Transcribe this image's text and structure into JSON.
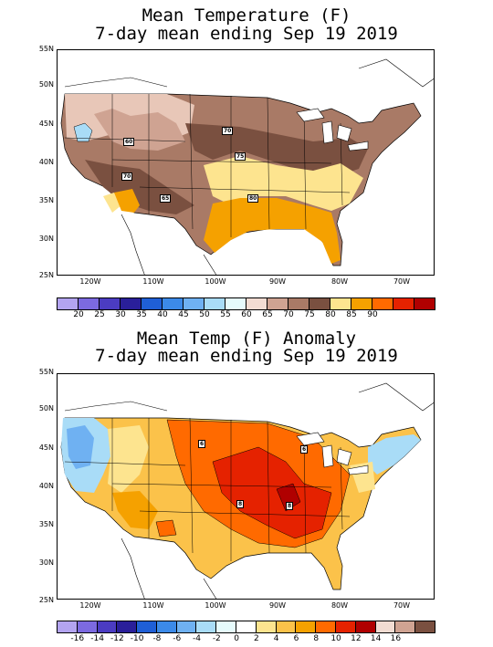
{
  "panel1": {
    "title_line1": "Mean Temperature (F)",
    "title_line2": "7-day mean ending Sep 19 2019",
    "contour_labels": [
      "60",
      "70",
      "75",
      "70",
      "65",
      "80"
    ],
    "colorbar": {
      "ticks": [
        "20",
        "25",
        "30",
        "35",
        "40",
        "45",
        "50",
        "55",
        "60",
        "65",
        "70",
        "75",
        "80",
        "85",
        "90"
      ],
      "colors": [
        "#b3a4f0",
        "#7c6ae0",
        "#4b3cc2",
        "#2a1f9a",
        "#1f5fd6",
        "#3c8ae8",
        "#6fb1f2",
        "#a9dcf7",
        "#e6fbfc",
        "#f2dcd2",
        "#cfa392",
        "#a97a66",
        "#7a5040",
        "#fde48f",
        "#f5a100",
        "#ff6a00",
        "#e52200",
        "#b00000"
      ]
    }
  },
  "panel2": {
    "title_line1": "Mean Temp (F) Anomaly",
    "title_line2": "7-day mean ending Sep 19 2019",
    "contour_labels": [
      "6",
      "6",
      "8",
      "8"
    ],
    "colorbar": {
      "ticks": [
        "-16",
        "-14",
        "-12",
        "-10",
        "-8",
        "-6",
        "-4",
        "-2",
        "0",
        "2",
        "4",
        "6",
        "8",
        "10",
        "12",
        "14",
        "16"
      ],
      "colors": [
        "#b3a4f0",
        "#7c6ae0",
        "#4b3cc2",
        "#2a1f9a",
        "#1f5fd6",
        "#3c8ae8",
        "#6fb1f2",
        "#a9dcf7",
        "#e6fbfc",
        "#ffffff",
        "#fde48f",
        "#fbc24a",
        "#f5a100",
        "#ff6a00",
        "#e52200",
        "#b00000",
        "#f2dcd2",
        "#cfa392",
        "#7a5040"
      ]
    }
  },
  "axes": {
    "lat_labels": [
      "55N",
      "50N",
      "45N",
      "40N",
      "35N",
      "30N",
      "25N"
    ],
    "lon_labels": [
      "120W",
      "110W",
      "100W",
      "90W",
      "80W",
      "70W"
    ]
  }
}
